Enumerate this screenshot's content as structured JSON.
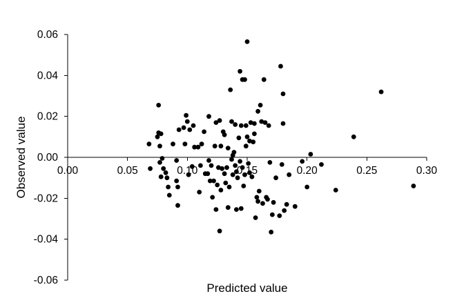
{
  "chart_data": {
    "type": "scatter",
    "title": "",
    "xlabel": "Predicted value",
    "ylabel": "Observed value",
    "xlim": [
      0.0,
      0.3
    ],
    "ylim": [
      -0.06,
      0.06
    ],
    "x_ticks": [
      "0.00",
      "0.05",
      "0.10",
      "0.15",
      "0.20",
      "0.25",
      "0.30"
    ],
    "y_ticks": [
      "0.06",
      "0.04",
      "0.02",
      "0.00",
      "-0.02",
      "-0.04",
      "-0.06"
    ],
    "grid": false,
    "legend": "none",
    "marker_color": "#000000",
    "series": [
      {
        "points": [
          [
            0.068,
            0.0065
          ],
          [
            0.069,
            -0.0055
          ],
          [
            0.075,
            0.01
          ],
          [
            0.076,
            0.012
          ],
          [
            0.076,
            0.0255
          ],
          [
            0.077,
            0.0055
          ],
          [
            0.077,
            -0.0025
          ],
          [
            0.078,
            0.0115
          ],
          [
            0.078,
            -0.0095
          ],
          [
            0.079,
            -0.0005
          ],
          [
            0.08,
            -0.0055
          ],
          [
            0.082,
            -0.0075
          ],
          [
            0.083,
            -0.01
          ],
          [
            0.084,
            -0.0145
          ],
          [
            0.085,
            -0.0185
          ],
          [
            0.088,
            0.0065
          ],
          [
            0.091,
            -0.0015
          ],
          [
            0.091,
            -0.0115
          ],
          [
            0.092,
            -0.0145
          ],
          [
            0.092,
            -0.0235
          ],
          [
            0.093,
            0.0135
          ],
          [
            0.097,
            0.0145
          ],
          [
            0.098,
            0.0065
          ],
          [
            0.099,
            0.0205
          ],
          [
            0.1,
            0.0175
          ],
          [
            0.101,
            -0.0085
          ],
          [
            0.102,
            0.0135
          ],
          [
            0.104,
            -0.0045
          ],
          [
            0.105,
            0.0155
          ],
          [
            0.106,
            0.005
          ],
          [
            0.109,
            0.005
          ],
          [
            0.11,
            -0.017
          ],
          [
            0.111,
            -0.004
          ],
          [
            0.112,
            0.0065
          ],
          [
            0.114,
            0.0125
          ],
          [
            0.115,
            -0.008
          ],
          [
            0.117,
            -0.008
          ],
          [
            0.118,
            0.02
          ],
          [
            0.118,
            -0.0015
          ],
          [
            0.119,
            -0.0115
          ],
          [
            0.12,
            -0.004
          ],
          [
            0.121,
            -0.0195
          ],
          [
            0.122,
            -0.0115
          ],
          [
            0.123,
            0.0055
          ],
          [
            0.124,
            0.017
          ],
          [
            0.124,
            -0.0255
          ],
          [
            0.125,
            -0.0135
          ],
          [
            0.126,
            -0.005
          ],
          [
            0.127,
            0.018
          ],
          [
            0.127,
            -0.036
          ],
          [
            0.128,
            -0.016
          ],
          [
            0.128,
            0.0055
          ],
          [
            0.129,
            -0.0055
          ],
          [
            0.13,
            0.0125
          ],
          [
            0.131,
            0.011
          ],
          [
            0.131,
            -0.008
          ],
          [
            0.132,
            -0.0125
          ],
          [
            0.133,
            -0.005
          ],
          [
            0.134,
            0.0045
          ],
          [
            0.134,
            -0.0245
          ],
          [
            0.135,
            -0.0145
          ],
          [
            0.136,
            0.033
          ],
          [
            0.137,
            0.0175
          ],
          [
            0.137,
            -0.001
          ],
          [
            0.138,
            0.001
          ],
          [
            0.138,
            -0.0085
          ],
          [
            0.139,
            0.0025
          ],
          [
            0.14,
            -0.004
          ],
          [
            0.14,
            0.016
          ],
          [
            0.141,
            -0.007
          ],
          [
            0.141,
            -0.0255
          ],
          [
            0.142,
            -0.01
          ],
          [
            0.143,
            0.0095
          ],
          [
            0.144,
            0.042
          ],
          [
            0.144,
            -0.002
          ],
          [
            0.145,
            0.0155
          ],
          [
            0.145,
            -0.025
          ],
          [
            0.146,
            0.038
          ],
          [
            0.146,
            -0.005
          ],
          [
            0.147,
            -0.014
          ],
          [
            0.148,
            0.038
          ],
          [
            0.148,
            -0.0085
          ],
          [
            0.149,
            0.0155
          ],
          [
            0.149,
            0.0055
          ],
          [
            0.15,
            0.0565
          ],
          [
            0.15,
            0.01
          ],
          [
            0.151,
            -0.003
          ],
          [
            0.152,
            0.008
          ],
          [
            0.152,
            -0.0075
          ],
          [
            0.153,
            0.017
          ],
          [
            0.154,
            -0.0095
          ],
          [
            0.155,
            0.0075
          ],
          [
            0.156,
            0.0165
          ],
          [
            0.156,
            0.0115
          ],
          [
            0.157,
            -0.0295
          ],
          [
            0.158,
            -0.0195
          ],
          [
            0.159,
            0.0225
          ],
          [
            0.159,
            -0.0215
          ],
          [
            0.16,
            -0.0165
          ],
          [
            0.161,
            0.0255
          ],
          [
            0.162,
            0.0175
          ],
          [
            0.163,
            -0.0225
          ],
          [
            0.164,
            0.038
          ],
          [
            0.165,
            0.017
          ],
          [
            0.166,
            -0.0195
          ],
          [
            0.167,
            -0.0205
          ],
          [
            0.168,
            0.0155
          ],
          [
            0.169,
            -0.0025
          ],
          [
            0.17,
            -0.0365
          ],
          [
            0.171,
            -0.028
          ],
          [
            0.172,
            -0.022
          ],
          [
            0.174,
            -0.01
          ],
          [
            0.177,
            -0.0285
          ],
          [
            0.178,
            0.0445
          ],
          [
            0.179,
            -0.0035
          ],
          [
            0.18,
            0.031
          ],
          [
            0.18,
            0.0165
          ],
          [
            0.181,
            -0.026
          ],
          [
            0.183,
            -0.023
          ],
          [
            0.185,
            -0.0085
          ],
          [
            0.19,
            -0.024
          ],
          [
            0.196,
            -0.002
          ],
          [
            0.2,
            -0.0145
          ],
          [
            0.203,
            0.0015
          ],
          [
            0.212,
            -0.0035
          ],
          [
            0.224,
            -0.016
          ],
          [
            0.239,
            0.01
          ],
          [
            0.262,
            0.032
          ],
          [
            0.289,
            -0.014
          ]
        ]
      }
    ]
  }
}
